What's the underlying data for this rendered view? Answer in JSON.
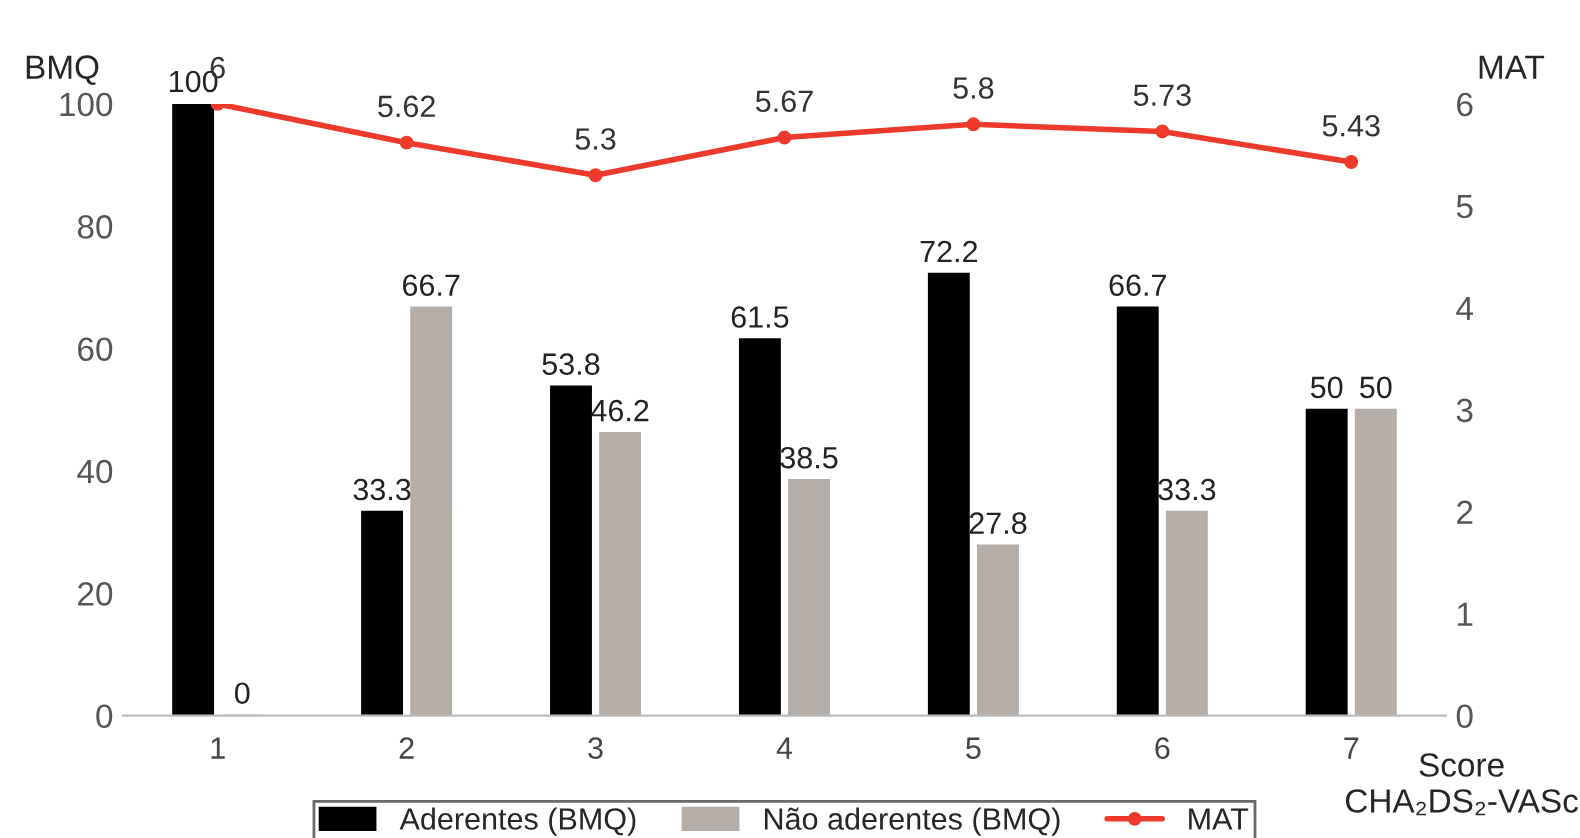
{
  "chart_data": {
    "type": "bar",
    "categories": [
      "1",
      "2",
      "3",
      "4",
      "5",
      "6",
      "7"
    ],
    "xlabel": "Score\nCHA₂DS₂-VASc",
    "ylabel": "BMQ",
    "y2label": "MAT",
    "series": [
      {
        "name": "Aderentes (BMQ)",
        "color": "#000000",
        "values": [
          100,
          33.3,
          53.8,
          61.5,
          72.2,
          66.7,
          50
        ]
      },
      {
        "name": "Não aderentes (BMQ)",
        "color": "#b5ada7",
        "values": [
          0,
          66.7,
          46.2,
          38.5,
          27.8,
          33.3,
          50
        ]
      },
      {
        "name": "MAT",
        "type": "line",
        "axis": "y2",
        "color": "#ee3a2c",
        "marker": "circle",
        "values": [
          6,
          5.62,
          5.3,
          5.67,
          5.8,
          5.73,
          5.43
        ]
      }
    ],
    "ylim": [
      0,
      100
    ],
    "yticks": [
      0,
      20,
      40,
      60,
      80,
      100
    ],
    "y2lim": [
      0,
      6
    ],
    "y2ticks": [
      0,
      1,
      2,
      3,
      4,
      5,
      6
    ],
    "data_labels": true,
    "grid": false,
    "legend": "bottom"
  }
}
